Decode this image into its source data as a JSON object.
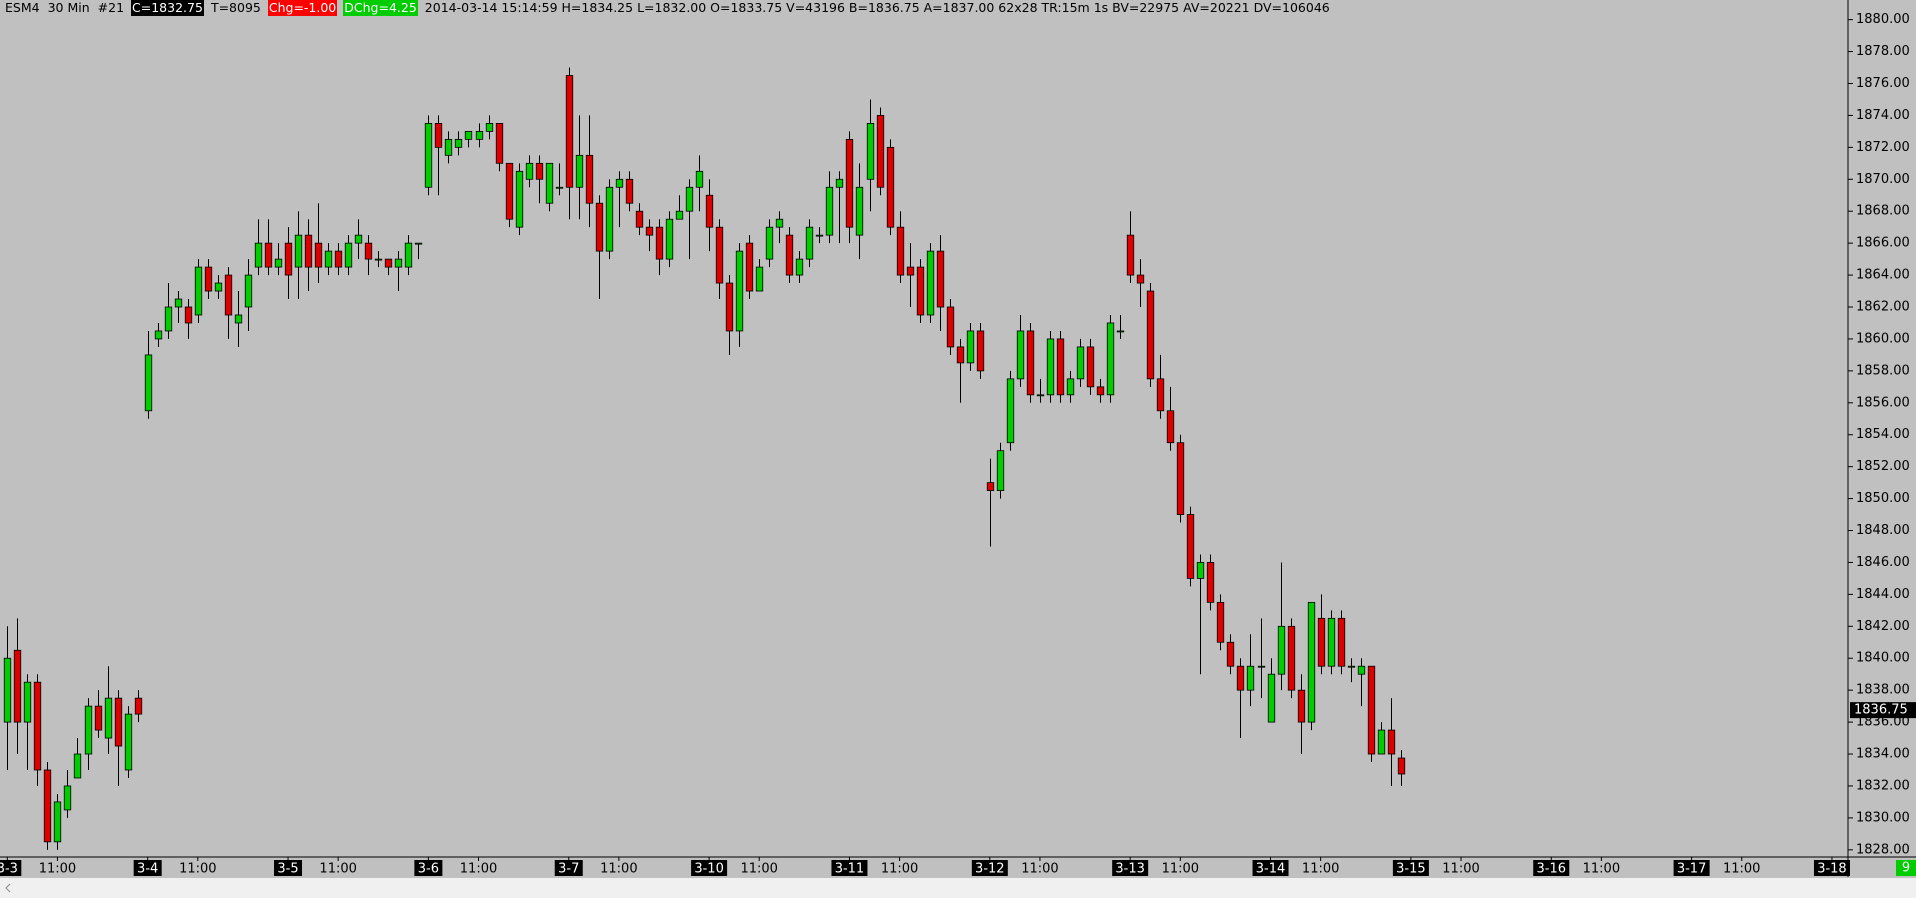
{
  "chart_data": {
    "type": "candlestick",
    "header_items": [
      {
        "text": "ESM4"
      },
      {
        "text": "30 Min"
      },
      {
        "text": "#21"
      },
      {
        "text": "C=1832.75",
        "background": "#000000",
        "color": "#ffffff"
      },
      {
        "text": "T=8095"
      },
      {
        "text": "Chg=-1.00",
        "background": "#ff0000",
        "color": "#ffffff"
      },
      {
        "text": "DChg=4.25",
        "background": "#00cc00",
        "color": "#ffffff"
      },
      {
        "text": "2014-03-14 15:14:59 H=1834.25 L=1832.00 O=1833.75 V=43196 B=1836.75 A=1837.00 62x28 TR:15m 1s BV=22975 AV=20221 DV=106046"
      }
    ],
    "up_color": "#00cc00",
    "down_color": "#dd0000",
    "categories": [
      null,
      null,
      null,
      null,
      null,
      null,
      null,
      null,
      null,
      null,
      null,
      null,
      null,
      null,
      null,
      null,
      null,
      null,
      null,
      null,
      null,
      null,
      null,
      null,
      null,
      null,
      null,
      null,
      null,
      null,
      null,
      null,
      null,
      null,
      null,
      null,
      null,
      null,
      null,
      null,
      null,
      null,
      null,
      null,
      null,
      null,
      null,
      null,
      null,
      null,
      null,
      null,
      null,
      null,
      null,
      null,
      null,
      null,
      null,
      null,
      null,
      null,
      null,
      null,
      null,
      null,
      null,
      null,
      null,
      null,
      null,
      null,
      null,
      null,
      null,
      null,
      null,
      null,
      null,
      null,
      null,
      null,
      null,
      null,
      null,
      null,
      null,
      null,
      null,
      null,
      null,
      null,
      null,
      null,
      null,
      null,
      null,
      null,
      null,
      null,
      null,
      null,
      null,
      null,
      null,
      null,
      null,
      null,
      null,
      null,
      null,
      null,
      null,
      null,
      null,
      null,
      null,
      null,
      null,
      null,
      null,
      null,
      null,
      null,
      null,
      null,
      null,
      null,
      null,
      null,
      null,
      null,
      null,
      null,
      null,
      null,
      null,
      null,
      null,
      null
    ],
    "open": [
      1836,
      1840.5,
      1836,
      1838.5,
      1833,
      1828.5,
      1830.5,
      1832.5,
      1834,
      1837,
      1835,
      1837.5,
      1833,
      1837.5,
      1855.5,
      1860,
      1860.5,
      1862,
      1862,
      1861.5,
      1864.5,
      1863,
      1864,
      1861,
      1862,
      1864.5,
      1866,
      1864.5,
      1866,
      1864.5,
      1866.5,
      1866,
      1864.5,
      1865.5,
      1864.5,
      1866,
      1866,
      1865,
      1865,
      1864.5,
      1864.5,
      1866,
      1869.5,
      1873.5,
      1871.5,
      1872,
      1872.5,
      1872.5,
      1873,
      1873.5,
      1871,
      1867,
      1870,
      1871,
      1868.5,
      1869.5,
      1876.5,
      1869.5,
      1871.5,
      1868.5,
      1865.5,
      1869.5,
      1870,
      1868,
      1867,
      1867,
      1865,
      1867.5,
      1868,
      1869.5,
      1869,
      1867,
      1863.5,
      1860.5,
      1866,
      1863,
      1865,
      1867,
      1866.5,
      1864,
      1865,
      1866.5,
      1866.5,
      1869.5,
      1872.5,
      1866.5,
      1870,
      1874,
      1872,
      1867,
      1864.5,
      1864.5,
      1861.5,
      1865.5,
      1862,
      1859.5,
      1858.5,
      1860.5,
      1851,
      1850.5,
      1853.5,
      1857.5,
      1860.5,
      1856.5,
      1856.5,
      1860,
      1856.5,
      1857.5,
      1859.5,
      1857,
      1856.5,
      1860.5,
      1866.5,
      1864,
      1863,
      1857.5,
      1855.5,
      1853.5,
      1849,
      1845,
      1846,
      1843.5,
      1841,
      1839.5,
      1838,
      1839.5,
      1836,
      1839,
      1842,
      1838,
      1836,
      1842.5,
      1839.5,
      1842.5,
      1839.5,
      1839,
      1839.5,
      1834,
      1835.5,
      1833.75
    ],
    "high": [
      1842,
      1842.5,
      1839,
      1839,
      1833.5,
      1831.5,
      1833,
      1835,
      1837.5,
      1838,
      1839.5,
      1838,
      1837,
      1838,
      1860.5,
      1861,
      1863.5,
      1863,
      1862.5,
      1865,
      1865,
      1864,
      1864.5,
      1863,
      1865,
      1867.5,
      1867.5,
      1866,
      1867,
      1868,
      1867.5,
      1868.5,
      1866,
      1866,
      1866.5,
      1867.5,
      1866.5,
      1865.5,
      1865,
      1865.5,
      1866.5,
      1866,
      1874,
      1874,
      1873,
      1873,
      1873,
      1873.5,
      1874,
      1873.5,
      1871,
      1871,
      1871.5,
      1871.5,
      1871,
      1871,
      1877,
      1874,
      1874,
      1869,
      1870,
      1870.5,
      1870.5,
      1868.5,
      1867.5,
      1867.5,
      1868,
      1869,
      1870,
      1871.5,
      1870,
      1867.5,
      1864,
      1866,
      1866.5,
      1865,
      1867.5,
      1868,
      1867,
      1865.5,
      1867.5,
      1867,
      1870.5,
      1870.5,
      1873,
      1871,
      1875,
      1874.5,
      1872.5,
      1868,
      1866,
      1865,
      1866,
      1866.5,
      1862.5,
      1860,
      1861,
      1861,
      1852.5,
      1853.5,
      1858,
      1861.5,
      1861,
      1857.5,
      1860.5,
      1860.5,
      1858,
      1860,
      1860,
      1857.5,
      1861.5,
      1861.5,
      1868,
      1865,
      1863.5,
      1859,
      1857,
      1854,
      1849.5,
      1846.5,
      1846.5,
      1844,
      1841.5,
      1840,
      1841.5,
      1842.5,
      1840,
      1846,
      1842.5,
      1839,
      1843.5,
      1844,
      1843,
      1843,
      1840,
      1840,
      1839.5,
      1836,
      1837.5,
      1834.25
    ],
    "low": [
      1833,
      1834,
      1833,
      1832,
      1828,
      1828,
      1830,
      1832.5,
      1833,
      1835,
      1834,
      1832,
      1832.5,
      1836,
      1855,
      1859.5,
      1860,
      1861,
      1860,
      1861,
      1862.5,
      1862.5,
      1860,
      1859.5,
      1860.5,
      1864,
      1864,
      1864,
      1862.5,
      1862.5,
      1863,
      1863.5,
      1864,
      1864,
      1864,
      1865,
      1864,
      1864.5,
      1864,
      1863,
      1864,
      1865,
      1869,
      1869,
      1871,
      1871.5,
      1872,
      1872,
      1872.5,
      1870.5,
      1867,
      1866.5,
      1869.5,
      1868.5,
      1868,
      1869,
      1867.5,
      1867.5,
      1867,
      1862.5,
      1865,
      1867,
      1868,
      1866.5,
      1865.5,
      1864,
      1864.5,
      1867.5,
      1865,
      1868,
      1865.5,
      1862.5,
      1859,
      1859.5,
      1862.5,
      1863,
      1864.5,
      1866,
      1863.5,
      1863.5,
      1864.5,
      1866,
      1866,
      1866,
      1866,
      1865,
      1868,
      1869,
      1866.5,
      1863.5,
      1862,
      1861,
      1861,
      1860.5,
      1859,
      1856,
      1858,
      1857.5,
      1847,
      1850,
      1853,
      1857,
      1856,
      1856,
      1856,
      1856,
      1856,
      1857,
      1856.5,
      1856,
      1856,
      1860,
      1863.5,
      1862,
      1857,
      1855,
      1853,
      1848.5,
      1844.5,
      1839,
      1843,
      1840.5,
      1839,
      1835,
      1837,
      1837.5,
      1836,
      1838,
      1837.5,
      1834,
      1835.5,
      1839,
      1839,
      1839,
      1838.5,
      1837,
      1833.5,
      1834,
      1832,
      1832
    ],
    "close": [
      1840,
      1836,
      1838.5,
      1833,
      1828.5,
      1831,
      1832,
      1834,
      1837,
      1835.5,
      1837.5,
      1834.5,
      1836.5,
      1836.5,
      1859,
      1860.5,
      1862,
      1862.5,
      1861,
      1864.5,
      1863,
      1863.5,
      1861.5,
      1861.5,
      1864,
      1866,
      1864.5,
      1865,
      1864,
      1866.5,
      1864.5,
      1864.5,
      1865.5,
      1864.5,
      1866,
      1866.5,
      1865,
      1865,
      1864.5,
      1865,
      1866,
      1866,
      1873.5,
      1872,
      1872.5,
      1872.5,
      1873,
      1873,
      1873.5,
      1871,
      1867.5,
      1870.5,
      1871,
      1870,
      1871,
      1869.5,
      1869.5,
      1871.5,
      1868.5,
      1865.5,
      1869.5,
      1870,
      1868.5,
      1867,
      1866.5,
      1865,
      1867.5,
      1868,
      1869.5,
      1870.5,
      1867,
      1863.5,
      1860.5,
      1865.5,
      1863,
      1864.5,
      1867,
      1867.5,
      1864,
      1865,
      1867,
      1866.5,
      1869.5,
      1870,
      1867,
      1869.5,
      1873.5,
      1869.5,
      1867,
      1864,
      1864,
      1861.5,
      1865.5,
      1862,
      1859.5,
      1858.5,
      1860.5,
      1858,
      1850.5,
      1853,
      1857.5,
      1860.5,
      1856.5,
      1856.5,
      1860,
      1856.5,
      1857.5,
      1859.5,
      1857,
      1856.5,
      1861,
      1860.5,
      1864,
      1863.5,
      1857.5,
      1855.5,
      1853.5,
      1849,
      1845,
      1846,
      1843.5,
      1841,
      1839.5,
      1838,
      1839.5,
      1839.5,
      1839,
      1842,
      1838,
      1836,
      1843.5,
      1839.5,
      1842.5,
      1839.5,
      1839.5,
      1839.5,
      1834,
      1835.5,
      1834,
      1832.75
    ],
    "xlim": [
      -0.73,
      183.6
    ],
    "ylim": [
      1827.55,
      1881.23
    ],
    "xticks": [
      {
        "value": 0,
        "label": "3-3",
        "highlight": true
      },
      {
        "value": 5,
        "label": "11:00"
      },
      {
        "value": 14,
        "label": "3-4",
        "highlight": true
      },
      {
        "value": 19,
        "label": "11:00"
      },
      {
        "value": 28,
        "label": "3-5",
        "highlight": true
      },
      {
        "value": 33,
        "label": "11:00"
      },
      {
        "value": 42,
        "label": "3-6",
        "highlight": true
      },
      {
        "value": 47,
        "label": "11:00"
      },
      {
        "value": 56,
        "label": "3-7",
        "highlight": true
      },
      {
        "value": 61,
        "label": "11:00"
      },
      {
        "value": 70,
        "label": "3-10",
        "highlight": true
      },
      {
        "value": 75,
        "label": "11:00"
      },
      {
        "value": 84,
        "label": "3-11",
        "highlight": true
      },
      {
        "value": 89,
        "label": "11:00"
      },
      {
        "value": 98,
        "label": "3-12",
        "highlight": true
      },
      {
        "value": 103,
        "label": "11:00"
      },
      {
        "value": 112,
        "label": "3-13",
        "highlight": true
      },
      {
        "value": 117,
        "label": "11:00"
      },
      {
        "value": 126,
        "label": "3-14",
        "highlight": true
      },
      {
        "value": 131,
        "label": "11:00"
      },
      {
        "value": 140,
        "label": "3-15",
        "highlight": true
      },
      {
        "value": 145,
        "label": "11:00"
      },
      {
        "value": 154,
        "label": "3-16",
        "highlight": true
      },
      {
        "value": 159,
        "label": "11:00"
      },
      {
        "value": 168,
        "label": "3-17",
        "highlight": true
      },
      {
        "value": 173,
        "label": "11:00"
      },
      {
        "value": 182,
        "label": "3-18",
        "highlight": true
      }
    ],
    "yticks": [
      {
        "value": 1880,
        "label": "1880.00"
      },
      {
        "value": 1878,
        "label": "1878.00"
      },
      {
        "value": 1876,
        "label": "1876.00"
      },
      {
        "value": 1874,
        "label": "1874.00"
      },
      {
        "value": 1872,
        "label": "1872.00"
      },
      {
        "value": 1870,
        "label": "1870.00"
      },
      {
        "value": 1868,
        "label": "1868.00"
      },
      {
        "value": 1866,
        "label": "1866.00"
      },
      {
        "value": 1864,
        "label": "1864.00"
      },
      {
        "value": 1862,
        "label": "1862.00"
      },
      {
        "value": 1860,
        "label": "1860.00"
      },
      {
        "value": 1858,
        "label": "1858.00"
      },
      {
        "value": 1856,
        "label": "1856.00"
      },
      {
        "value": 1854,
        "label": "1854.00"
      },
      {
        "value": 1852,
        "label": "1852.00"
      },
      {
        "value": 1850,
        "label": "1850.00"
      },
      {
        "value": 1848,
        "label": "1848.00"
      },
      {
        "value": 1846,
        "label": "1846.00"
      },
      {
        "value": 1844,
        "label": "1844.00"
      },
      {
        "value": 1842,
        "label": "1842.00"
      },
      {
        "value": 1840,
        "label": "1840.00"
      },
      {
        "value": 1838,
        "label": "1838.00"
      },
      {
        "value": 1836,
        "label": "1836.00"
      },
      {
        "value": 1834,
        "label": "1834.00"
      },
      {
        "value": 1832,
        "label": "1832.00"
      },
      {
        "value": 1830,
        "label": "1830.00"
      },
      {
        "value": 1828,
        "label": "1828.00"
      }
    ],
    "price_marker": {
      "value": 1836.75,
      "label": "1836.75"
    },
    "corner_label": "9",
    "grid": false
  }
}
